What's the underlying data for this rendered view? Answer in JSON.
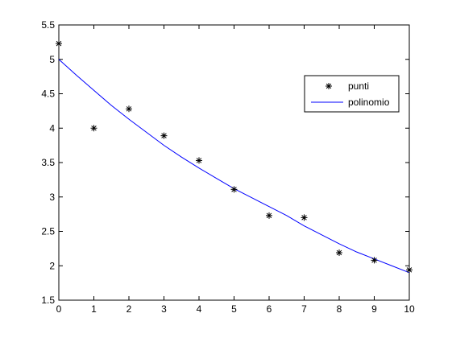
{
  "chart_data": {
    "type": "scatter",
    "xlim": [
      0,
      10
    ],
    "ylim": [
      1.5,
      5.5
    ],
    "x_ticks": [
      0,
      1,
      2,
      3,
      4,
      5,
      6,
      7,
      8,
      9,
      10
    ],
    "x_tick_labels": [
      "0",
      "1",
      "2",
      "3",
      "4",
      "5",
      "6",
      "7",
      "8",
      "9",
      "10"
    ],
    "y_ticks": [
      1.5,
      2,
      2.5,
      3,
      3.5,
      4,
      4.5,
      5,
      5.5
    ],
    "y_tick_labels": [
      "1.5",
      "2",
      "2.5",
      "3",
      "3.5",
      "4",
      "4.5",
      "5",
      "5.5"
    ],
    "grid": false,
    "legend": {
      "placement": "inside-right",
      "entries": [
        {
          "label": "punti",
          "marker": "asterisk",
          "color": "#000000"
        },
        {
          "label": "polinomio",
          "marker": "line",
          "color": "#0000ff"
        }
      ]
    },
    "series": [
      {
        "name": "punti",
        "kind": "points",
        "marker": "asterisk",
        "color": "#000000",
        "x": [
          0,
          1,
          2,
          3,
          4,
          5,
          6,
          7,
          8,
          9,
          10
        ],
        "y": [
          5.23,
          4.0,
          4.28,
          3.89,
          3.53,
          3.11,
          2.73,
          2.7,
          2.19,
          2.08,
          1.94
        ]
      },
      {
        "name": "polinomio",
        "kind": "line",
        "color": "#0000ff",
        "x": [
          0,
          0.5,
          1,
          1.5,
          2,
          2.5,
          3,
          3.5,
          4,
          4.5,
          5,
          5.5,
          6,
          6.5,
          7,
          7.5,
          8,
          8.5,
          9,
          9.5,
          10
        ],
        "y": [
          5.0,
          4.77,
          4.55,
          4.33,
          4.13,
          3.94,
          3.75,
          3.58,
          3.42,
          3.27,
          3.12,
          2.99,
          2.86,
          2.73,
          2.58,
          2.45,
          2.32,
          2.2,
          2.1,
          2.0,
          1.9
        ]
      }
    ]
  }
}
